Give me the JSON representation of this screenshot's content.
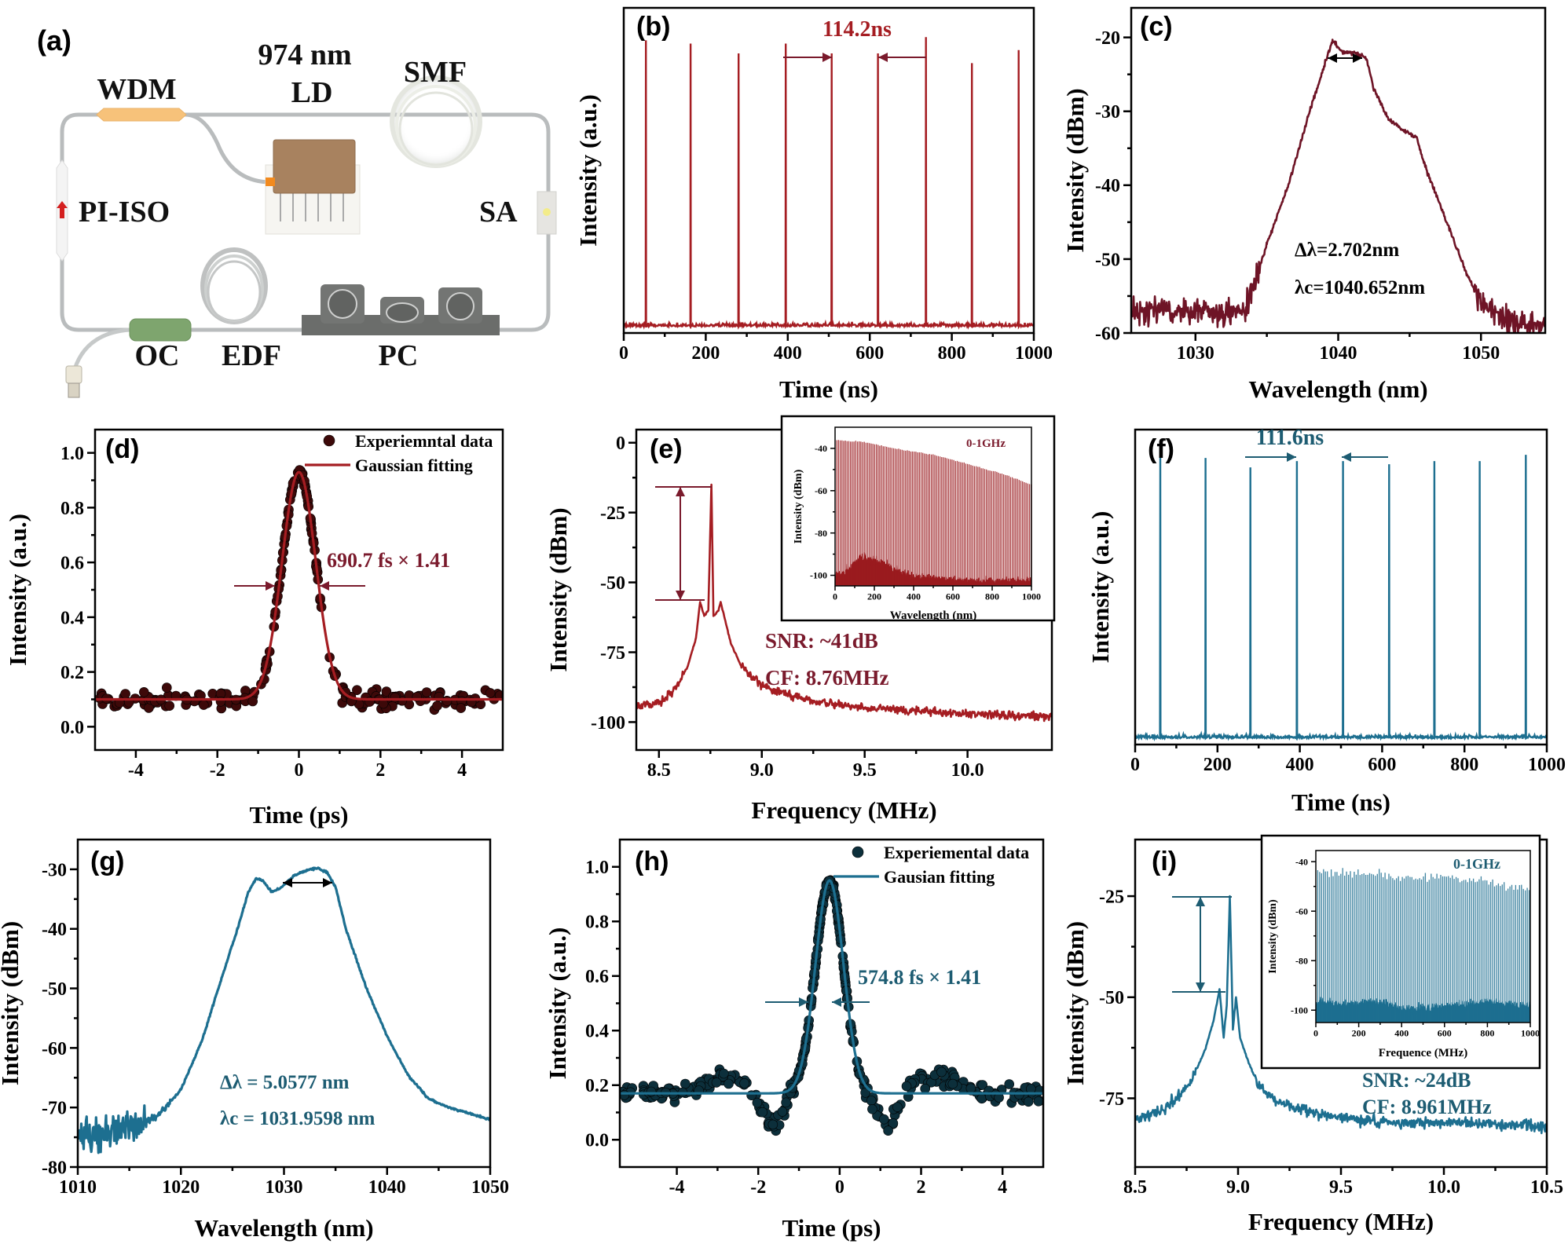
{
  "figure": {
    "panel_a": {
      "label": "(a)",
      "components": {
        "wdm": "WDM",
        "ld_wavelength": "974 nm",
        "ld": "LD",
        "smf": "SMF",
        "pi_iso": "PI-ISO",
        "sa": "SA",
        "oc": "OC",
        "edf": "EDF",
        "pc": "PC"
      },
      "colors": {
        "wdm": "#f7c27a",
        "ld": "#a8825f",
        "oc": "#7ea56e",
        "pc": "#6b6d6b",
        "fiber": "#b9bcbd",
        "iso_arrow": "#d42020",
        "sa": "#f3ec8a"
      }
    }
  },
  "chart_data": [
    {
      "panel_label": "(b)",
      "type": "line",
      "xlabel": "Time (ns)",
      "ylabel": "Intensity (a.u.)",
      "xlim": [
        0,
        1000
      ],
      "ylim": [
        0,
        1
      ],
      "grid": false,
      "xticks": [
        0,
        200,
        400,
        600,
        800,
        1000
      ],
      "xtick_labels": [
        "0",
        "200",
        "400",
        "600",
        "800",
        "1000"
      ],
      "yticks": [],
      "ytick_labels": [],
      "color": "#a51d22",
      "pulse_positions_ns": [
        54,
        163,
        280,
        395,
        507,
        620,
        737,
        849,
        963
      ],
      "pulse_peaks": [
        0.9,
        0.89,
        0.86,
        0.89,
        0.86,
        0.86,
        0.91,
        0.83,
        0.87
      ],
      "baseline": 0.02,
      "annotations": [
        "114.2ns"
      ]
    },
    {
      "panel_label": "(c)",
      "type": "line",
      "xlabel": "Wavelength (nm)",
      "ylabel": "Intensity (dBm)",
      "xlim": [
        1025.5,
        1054.5
      ],
      "ylim": [
        -60,
        -16
      ],
      "grid": false,
      "xticks": [
        1030,
        1040,
        1050
      ],
      "xtick_labels": [
        "1030",
        "1040",
        "1050"
      ],
      "yticks": [
        -60,
        -50,
        -40,
        -30,
        -20
      ],
      "ytick_labels": [
        "-60",
        "-50",
        "-40",
        "-30",
        "-20"
      ],
      "color": "#6e1426",
      "points": [
        [
          1025.5,
          -57
        ],
        [
          1028,
          -57
        ],
        [
          1030,
          -57
        ],
        [
          1032,
          -57.5
        ],
        [
          1033.5,
          -57
        ],
        [
          1035,
          -48
        ],
        [
          1036.5,
          -40
        ],
        [
          1038,
          -30
        ],
        [
          1039,
          -24
        ],
        [
          1039.6,
          -20.3
        ],
        [
          1040.3,
          -22
        ],
        [
          1041.5,
          -22.3
        ],
        [
          1042,
          -23
        ],
        [
          1042.5,
          -27
        ],
        [
          1043.5,
          -31
        ],
        [
          1044.5,
          -32.5
        ],
        [
          1045.5,
          -33.5
        ],
        [
          1046,
          -37
        ],
        [
          1047,
          -42
        ],
        [
          1048,
          -47
        ],
        [
          1049,
          -52
        ],
        [
          1050,
          -56
        ],
        [
          1052,
          -58.5
        ],
        [
          1054.5,
          -59
        ]
      ],
      "annotations": [
        "Δλ=2.702nm",
        "λc=1040.652nm"
      ]
    },
    {
      "panel_label": "(d)",
      "type": "scatter",
      "xlabel": "Time (ps)",
      "ylabel": "Intensity (a.u.)",
      "xlim": [
        -5,
        5
      ],
      "ylim": [
        -0.085,
        1.085
      ],
      "grid": false,
      "xticks": [
        -4,
        -2,
        0,
        2,
        4
      ],
      "xtick_labels": [
        "-4",
        "-2",
        "0",
        "2",
        "4"
      ],
      "yticks": [
        0,
        0.2,
        0.4,
        0.6,
        0.8,
        1.0
      ],
      "ytick_labels": [
        "0.0",
        "0.2",
        "0.4",
        "0.6",
        "0.8",
        "1.0"
      ],
      "color": "#a51d22",
      "point_color": "#3d0909",
      "fit": {
        "center": 0,
        "baseline": 0.1,
        "amplitude": 0.83,
        "fwhm": 0.974
      },
      "legend": [
        "Experiemntal data",
        "Gaussian fitting"
      ],
      "legend_position": "top-right",
      "annotations": [
        "690.7 fs × 1.41"
      ]
    },
    {
      "panel_label": "(e)",
      "type": "line",
      "xlabel": "Frequency (MHz)",
      "ylabel": "Intensity (dBm)",
      "xlim": [
        8.39,
        10.41
      ],
      "ylim": [
        -110,
        4.7
      ],
      "grid": false,
      "xticks": [
        8.5,
        9.0,
        9.5,
        10.0
      ],
      "xtick_labels": [
        "8.5",
        "9.0",
        "9.5",
        "10.0"
      ],
      "yticks": [
        0,
        -25,
        -50,
        -75,
        -100
      ],
      "ytick_labels": [
        "0",
        "-25",
        "-50",
        "-75",
        "-100"
      ],
      "color": "#a51d22",
      "points": [
        [
          8.39,
          -95
        ],
        [
          8.5,
          -93
        ],
        [
          8.58,
          -88
        ],
        [
          8.64,
          -80
        ],
        [
          8.68,
          -70
        ],
        [
          8.7,
          -57
        ],
        [
          8.72,
          -62
        ],
        [
          8.74,
          -60
        ],
        [
          8.755,
          -15
        ],
        [
          8.765,
          -62
        ],
        [
          8.79,
          -60
        ],
        [
          8.8,
          -57
        ],
        [
          8.82,
          -63
        ],
        [
          8.85,
          -72
        ],
        [
          8.9,
          -80
        ],
        [
          9.0,
          -87
        ],
        [
          9.2,
          -92
        ],
        [
          9.5,
          -95
        ],
        [
          10.0,
          -97
        ],
        [
          10.41,
          -98
        ]
      ],
      "annotations": [
        "SNR: ~41dB",
        "CF: 8.76MHz"
      ],
      "inset": {
        "xlabel": "Wavelength (nm)",
        "ylabel": "Intensity (dBm)",
        "label": "0-1GHz",
        "xlim": [
          0,
          1000
        ],
        "ylim": [
          -105,
          -30
        ],
        "xticks": [
          0,
          200,
          400,
          600,
          800,
          1000
        ],
        "xtick_labels": [
          "0",
          "200",
          "400",
          "600",
          "800",
          "1000"
        ],
        "yticks": [
          -40,
          -60,
          -80,
          -100
        ],
        "ytick_labels": [
          "-40",
          "-60",
          "-80",
          "-100"
        ],
        "comb_spacing": 8.76,
        "envelope_top": [
          [
            0,
            -36
          ],
          [
            150,
            -37
          ],
          [
            300,
            -40
          ],
          [
            500,
            -43
          ],
          [
            700,
            -48
          ],
          [
            850,
            -52
          ],
          [
            1000,
            -57
          ]
        ],
        "noise_floor": [
          [
            0,
            -100
          ],
          [
            60,
            -99
          ],
          [
            130,
            -93
          ],
          [
            250,
            -96
          ],
          [
            400,
            -101
          ],
          [
            700,
            -103
          ],
          [
            1000,
            -103
          ]
        ]
      }
    },
    {
      "panel_label": "(f)",
      "type": "line",
      "xlabel": "Time (ns)",
      "ylabel": "Intensity (a.u.)",
      "xlim": [
        0,
        1000
      ],
      "ylim": [
        0,
        1
      ],
      "grid": false,
      "xticks": [
        0,
        200,
        400,
        600,
        800,
        1000
      ],
      "xtick_labels": [
        "0",
        "200",
        "400",
        "600",
        "800",
        "1000"
      ],
      "yticks": [],
      "ytick_labels": [],
      "color": "#1d6f90",
      "pulse_positions_ns": [
        61,
        171,
        280,
        393,
        505,
        617,
        727,
        837,
        949
      ],
      "pulse_peaks": [
        0.94,
        0.91,
        0.88,
        0.9,
        0.9,
        0.89,
        0.9,
        0.9,
        0.92
      ],
      "baseline": 0.02,
      "annotations": [
        "111.6ns"
      ]
    },
    {
      "panel_label": "(g)",
      "type": "line",
      "xlabel": "Wavelength (nm)",
      "ylabel": "Intensity (dBm)",
      "xlim": [
        1010,
        1050
      ],
      "ylim": [
        -80,
        -25
      ],
      "grid": false,
      "xticks": [
        1010,
        1020,
        1030,
        1040,
        1050
      ],
      "xtick_labels": [
        "1010",
        "1020",
        "1030",
        "1040",
        "1050"
      ],
      "yticks": [
        -30,
        -40,
        -50,
        -60,
        -70,
        -80
      ],
      "ytick_labels": [
        "-30",
        "-40",
        "-50",
        "-60",
        "-70",
        "-80"
      ],
      "color": "#1d6f90",
      "points": [
        [
          1010,
          -75
        ],
        [
          1014,
          -74
        ],
        [
          1016,
          -73
        ],
        [
          1018,
          -71
        ],
        [
          1020,
          -67
        ],
        [
          1022,
          -59
        ],
        [
          1024,
          -48
        ],
        [
          1025.5,
          -40
        ],
        [
          1026.5,
          -34
        ],
        [
          1027.3,
          -31.5
        ],
        [
          1028,
          -32
        ],
        [
          1028.8,
          -33.8
        ],
        [
          1029.6,
          -33.2
        ],
        [
          1031,
          -31
        ],
        [
          1032.5,
          -30
        ],
        [
          1033.3,
          -29.8
        ],
        [
          1034.2,
          -30.6
        ],
        [
          1035,
          -33
        ],
        [
          1036,
          -40
        ],
        [
          1037,
          -45
        ],
        [
          1038,
          -50
        ],
        [
          1040,
          -58
        ],
        [
          1042,
          -64.5
        ],
        [
          1044,
          -68.5
        ],
        [
          1046,
          -70
        ],
        [
          1048,
          -71
        ],
        [
          1050,
          -72
        ]
      ],
      "annotations": [
        "Δλ = 5.0577 nm",
        "λc = 1031.9598 nm"
      ]
    },
    {
      "panel_label": "(h)",
      "type": "scatter",
      "xlabel": "Time (ps)",
      "ylabel": "Intensity (a.u.)",
      "xlim": [
        -5.4,
        5.0
      ],
      "ylim": [
        -0.1,
        1.1
      ],
      "grid": false,
      "xticks": [
        -4,
        -2,
        0,
        2,
        4
      ],
      "xtick_labels": [
        "-4",
        "-2",
        "0",
        "2",
        "4"
      ],
      "yticks": [
        0,
        0.2,
        0.4,
        0.6,
        0.8,
        1.0
      ],
      "ytick_labels": [
        "0.0",
        "0.2",
        "0.4",
        "0.6",
        "0.8",
        "1.0"
      ],
      "color": "#1d6f90",
      "point_color": "#0c2f3b",
      "fit": {
        "center": -0.25,
        "baseline": 0.17,
        "amplitude": 0.78,
        "fwhm": 0.81
      },
      "legend": [
        "Experiemental data",
        "Gausian fitting"
      ],
      "legend_position": "top-right",
      "annotations": [
        "574.8 fs × 1.41"
      ]
    },
    {
      "panel_label": "(i)",
      "type": "line",
      "xlabel": "Frequency (MHz)",
      "ylabel": "Intensity (dBm)",
      "xlim": [
        8.5,
        10.5
      ],
      "ylim": [
        -92,
        -11
      ],
      "grid": false,
      "xticks": [
        8.5,
        9.0,
        9.5,
        10.0,
        10.5
      ],
      "xtick_labels": [
        "8.5",
        "9.0",
        "9.5",
        "10.0",
        "10.5"
      ],
      "yticks": [
        -25,
        -50,
        -75
      ],
      "ytick_labels": [
        "-25",
        "-50",
        "-75"
      ],
      "color": "#1d6f90",
      "points": [
        [
          8.5,
          -80
        ],
        [
          8.6,
          -79
        ],
        [
          8.7,
          -75
        ],
        [
          8.78,
          -70
        ],
        [
          8.84,
          -63
        ],
        [
          8.88,
          -56
        ],
        [
          8.91,
          -48
        ],
        [
          8.93,
          -60
        ],
        [
          8.945,
          -52
        ],
        [
          8.96,
          -25
        ],
        [
          8.975,
          -58
        ],
        [
          8.99,
          -50
        ],
        [
          9.01,
          -60
        ],
        [
          9.05,
          -66
        ],
        [
          9.1,
          -72
        ],
        [
          9.2,
          -76
        ],
        [
          9.4,
          -79
        ],
        [
          9.7,
          -81
        ],
        [
          10.0,
          -81
        ],
        [
          10.5,
          -82
        ]
      ],
      "annotations": [
        "SNR: ~24dB",
        "CF: 8.961MHz"
      ],
      "inset": {
        "xlabel": "Frequence (MHz)",
        "ylabel": "Intensity (dBm)",
        "label": "0-1GHz",
        "xlim": [
          0,
          1000
        ],
        "ylim": [
          -105,
          -35.5
        ],
        "xticks": [
          0,
          200,
          400,
          600,
          800,
          1000
        ],
        "xtick_labels": [
          "0",
          "200",
          "400",
          "600",
          "800",
          "1000"
        ],
        "yticks": [
          -40,
          -60,
          -80,
          -100
        ],
        "ytick_labels": [
          "-40",
          "-60",
          "-80",
          "-100"
        ],
        "comb_spacing": 8.961,
        "envelope_top": [
          [
            0,
            -44
          ],
          [
            300,
            -45
          ],
          [
            450,
            -47
          ],
          [
            600,
            -46
          ],
          [
            800,
            -48
          ],
          [
            1000,
            -52
          ]
        ],
        "noise_floor": [
          [
            0,
            -97
          ],
          [
            100,
            -98
          ],
          [
            300,
            -97
          ],
          [
            400,
            -100
          ],
          [
            600,
            -99
          ],
          [
            800,
            -97
          ],
          [
            1000,
            -99
          ]
        ]
      }
    }
  ]
}
